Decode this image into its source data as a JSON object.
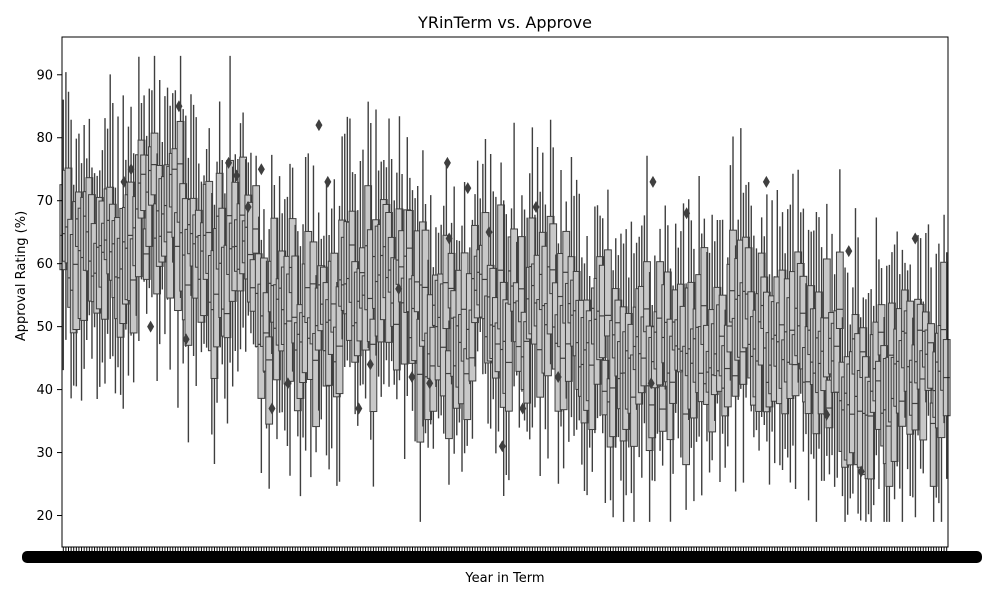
{
  "chart_data": {
    "type": "box",
    "title": "YRinTerm vs. Approve",
    "xlabel": "Year in Term",
    "ylabel": "Approval Rating (%)",
    "ylim": [
      15,
      96
    ],
    "y_ticks": [
      20,
      30,
      40,
      50,
      60,
      70,
      80,
      90
    ],
    "x_tick_labels_overplotted": true,
    "box_color": "#c8c8c8",
    "line_color": "#3f3f3f",
    "outliers": [
      {
        "x_frac": 0.07,
        "y": 73
      },
      {
        "x_frac": 0.078,
        "y": 75
      },
      {
        "x_frac": 0.1,
        "y": 50
      },
      {
        "x_frac": 0.132,
        "y": 85
      },
      {
        "x_frac": 0.14,
        "y": 48
      },
      {
        "x_frac": 0.188,
        "y": 76
      },
      {
        "x_frac": 0.197,
        "y": 74
      },
      {
        "x_frac": 0.21,
        "y": 69
      },
      {
        "x_frac": 0.225,
        "y": 75
      },
      {
        "x_frac": 0.237,
        "y": 37
      },
      {
        "x_frac": 0.255,
        "y": 41
      },
      {
        "x_frac": 0.29,
        "y": 82
      },
      {
        "x_frac": 0.3,
        "y": 73
      },
      {
        "x_frac": 0.335,
        "y": 37
      },
      {
        "x_frac": 0.348,
        "y": 44
      },
      {
        "x_frac": 0.38,
        "y": 56
      },
      {
        "x_frac": 0.395,
        "y": 42
      },
      {
        "x_frac": 0.415,
        "y": 41
      },
      {
        "x_frac": 0.435,
        "y": 76
      },
      {
        "x_frac": 0.437,
        "y": 64
      },
      {
        "x_frac": 0.458,
        "y": 72
      },
      {
        "x_frac": 0.482,
        "y": 65
      },
      {
        "x_frac": 0.497,
        "y": 31
      },
      {
        "x_frac": 0.52,
        "y": 37
      },
      {
        "x_frac": 0.535,
        "y": 69
      },
      {
        "x_frac": 0.56,
        "y": 42
      },
      {
        "x_frac": 0.667,
        "y": 73
      },
      {
        "x_frac": 0.665,
        "y": 41
      },
      {
        "x_frac": 0.705,
        "y": 68
      },
      {
        "x_frac": 0.795,
        "y": 73
      },
      {
        "x_frac": 0.863,
        "y": 36
      },
      {
        "x_frac": 0.888,
        "y": 62
      },
      {
        "x_frac": 0.902,
        "y": 27
      },
      {
        "x_frac": 0.963,
        "y": 64
      }
    ],
    "series_count_note": "hundreds of categories densely overplotted"
  }
}
